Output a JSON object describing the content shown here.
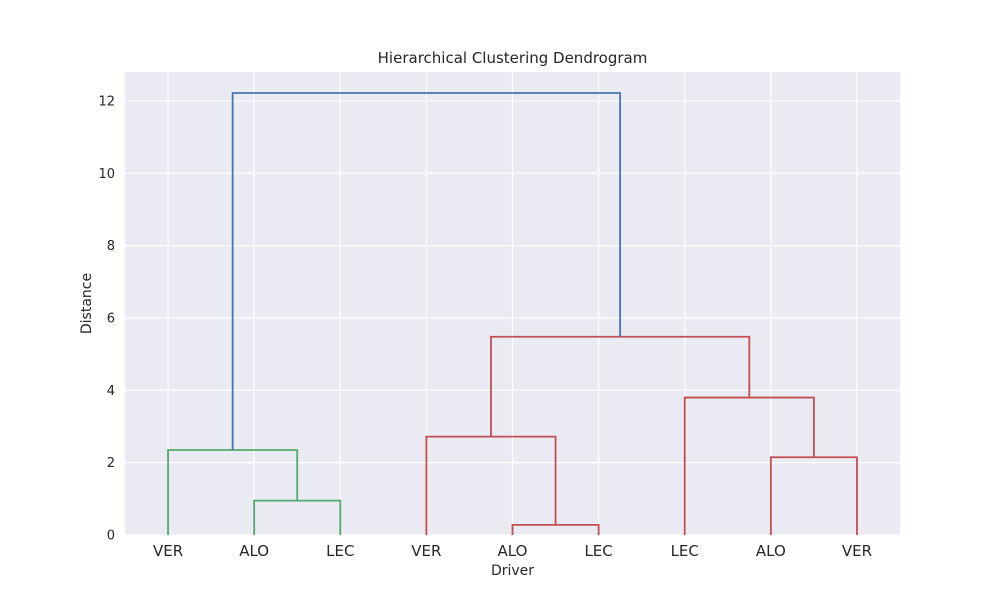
{
  "chart_data": {
    "type": "dendrogram",
    "title": "Hierarchical Clustering Dendrogram",
    "xlabel": "Driver",
    "ylabel": "Distance",
    "ylim": [
      0,
      12.8
    ],
    "yticks": [
      0,
      2,
      4,
      6,
      8,
      10,
      12
    ],
    "grid": true,
    "leaves": [
      "VER",
      "ALO",
      "LEC",
      "VER",
      "ALO",
      "LEC",
      "LEC",
      "ALO",
      "VER"
    ],
    "colors": {
      "cluster_1": "#55a868",
      "cluster_2": "#c44e52",
      "root": "#4c72b0",
      "background": "#eaeaf2",
      "grid": "#ffffff"
    },
    "links": [
      {
        "left": 1,
        "right": 2,
        "left_height": 0,
        "right_height": 0,
        "height": 0.95,
        "color": "cluster_1"
      },
      {
        "left": 0,
        "right": 1.5,
        "left_height": 0,
        "right_height": 0.95,
        "height": 2.35,
        "color": "cluster_1"
      },
      {
        "left": 4,
        "right": 5,
        "left_height": 0,
        "right_height": 0,
        "height": 0.28,
        "color": "cluster_2"
      },
      {
        "left": 3,
        "right": 4.5,
        "left_height": 0,
        "right_height": 0.28,
        "height": 2.72,
        "color": "cluster_2"
      },
      {
        "left": 7,
        "right": 8,
        "left_height": 0,
        "right_height": 0,
        "height": 2.15,
        "color": "cluster_2"
      },
      {
        "left": 6,
        "right": 7.5,
        "left_height": 0,
        "right_height": 2.15,
        "height": 3.8,
        "color": "cluster_2"
      },
      {
        "left": 3.75,
        "right": 6.75,
        "left_height": 2.72,
        "right_height": 3.8,
        "height": 5.48,
        "color": "cluster_2"
      },
      {
        "left": 0.75,
        "right": 5.25,
        "left_height": 2.35,
        "right_height": 5.48,
        "height": 12.22,
        "color": "root"
      }
    ]
  }
}
